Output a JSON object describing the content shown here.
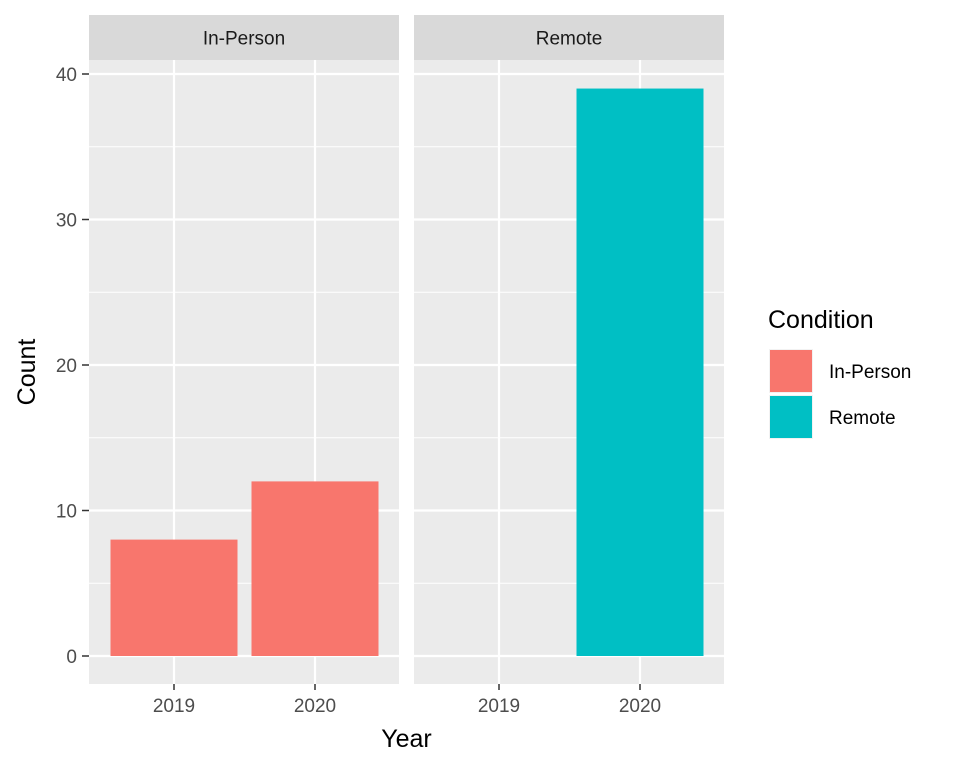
{
  "chart_data": {
    "type": "bar",
    "x_label": "Year",
    "y_label": "Count",
    "categories": [
      "2019",
      "2020"
    ],
    "y_range": [
      0,
      40
    ],
    "y_ticks": [
      0,
      10,
      20,
      30,
      40
    ],
    "grid": true,
    "legend": {
      "title": "Condition",
      "position": "right",
      "entries": [
        {
          "label": "In-Person",
          "color": "#F8766D"
        },
        {
          "label": "Remote",
          "color": "#00BFC4"
        }
      ]
    },
    "facets": [
      {
        "label": "In-Person",
        "color": "#F8766D",
        "values": [
          8,
          12
        ]
      },
      {
        "label": "Remote",
        "color": "#00BFC4",
        "values": [
          0,
          39
        ]
      }
    ]
  }
}
